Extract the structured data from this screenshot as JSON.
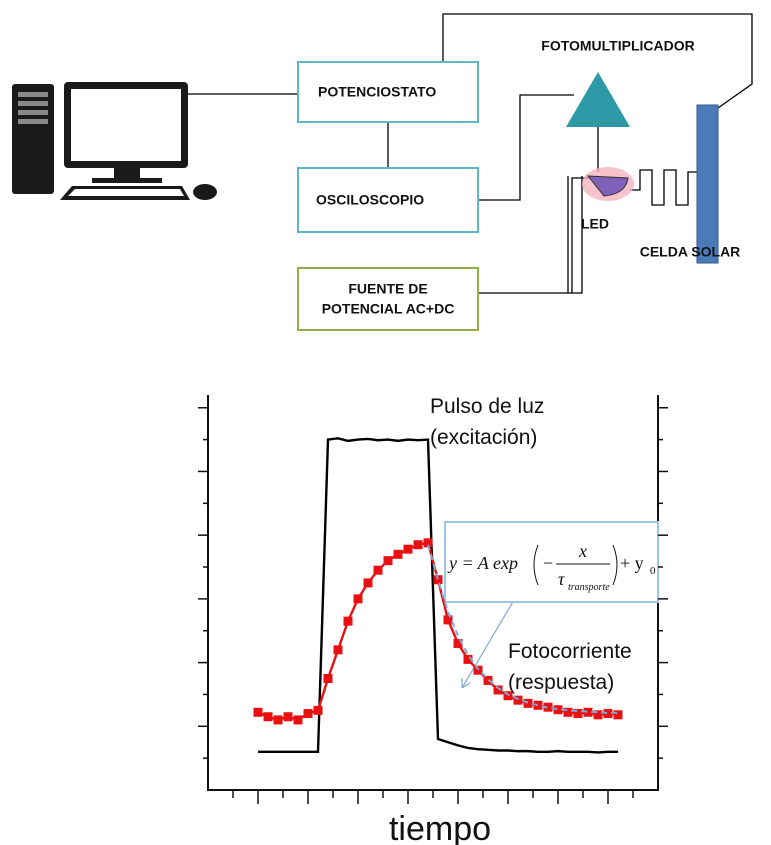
{
  "diagram": {
    "boxes": {
      "potenciostato": "POTENCIOSTATO",
      "osciloscopio": "OSCILOSCOPIO",
      "fuente_line1": "FUENTE DE",
      "fuente_line2": "POTENCIAL AC+DC"
    },
    "labels": {
      "fotomultiplicador": "FOTOMULTIPLICADOR",
      "led": "LED",
      "celda": "CELDA SOLAR"
    }
  },
  "chart_data": {
    "type": "line",
    "xlabel": "tiempo",
    "annotations": {
      "pulse_line1": "Pulso de luz",
      "pulse_line2": "(excitación)",
      "response_line1": "Fotocorriente",
      "response_line2": "(respuesta)"
    },
    "equation": {
      "lhs": "y = A exp",
      "minus": "−",
      "numerator": "x",
      "tau": "τ",
      "tau_sub": "transporte",
      "plus": "+ y",
      "y_sub": "0"
    },
    "xlim": [
      0,
      9
    ],
    "ylim": [
      0,
      6.2
    ],
    "xticks": [
      0.5,
      1,
      1.5,
      2,
      2.5,
      3,
      3.5,
      4,
      4.5,
      5,
      5.5,
      6,
      6.5,
      7,
      7.5,
      8,
      8.5
    ],
    "yticks": [
      0.5,
      1,
      1.5,
      2,
      2.5,
      3,
      3.5,
      4,
      4.5,
      5,
      5.5,
      6
    ],
    "x": [
      1.0,
      1.2,
      1.4,
      1.6,
      1.8,
      2.0,
      2.2,
      2.4,
      2.6,
      2.8,
      3.0,
      3.2,
      3.4,
      3.6,
      3.8,
      4.0,
      4.2,
      4.4,
      4.6,
      4.8,
      5.0,
      5.2,
      5.4,
      5.6,
      5.8,
      6.0,
      6.2,
      6.4,
      6.6,
      6.8,
      7.0,
      7.2,
      7.4,
      7.6,
      7.8,
      8.0,
      8.2
    ],
    "series": [
      {
        "color": "#000000",
        "markers": false,
        "dashed": false,
        "values": [
          0.6,
          0.6,
          0.6,
          0.6,
          0.6,
          0.6,
          0.6,
          5.5,
          5.52,
          5.48,
          5.5,
          5.51,
          5.49,
          5.5,
          5.48,
          5.5,
          5.49,
          5.5,
          0.8,
          0.75,
          0.7,
          0.66,
          0.64,
          0.63,
          0.62,
          0.62,
          0.61,
          0.61,
          0.6,
          0.6,
          0.61,
          0.6,
          0.6,
          0.6,
          0.59,
          0.6,
          0.6
        ]
      },
      {
        "color": "#e81010",
        "markers": true,
        "dashed": false,
        "values": [
          1.22,
          1.15,
          1.1,
          1.15,
          1.1,
          1.2,
          1.25,
          1.75,
          2.2,
          2.65,
          3.0,
          3.25,
          3.45,
          3.6,
          3.7,
          3.78,
          3.85,
          3.88,
          3.3,
          2.67,
          2.3,
          2.05,
          1.88,
          1.72,
          1.57,
          1.48,
          1.41,
          1.36,
          1.33,
          1.3,
          1.26,
          1.22,
          1.2,
          1.22,
          1.18,
          1.2,
          1.18
        ]
      },
      {
        "color": "#7fa8d8",
        "markers": false,
        "dashed": true,
        "values": [
          null,
          null,
          null,
          null,
          null,
          null,
          null,
          null,
          null,
          null,
          null,
          null,
          null,
          null,
          null,
          null,
          null,
          3.85,
          3.3,
          2.8,
          2.42,
          2.12,
          1.9,
          1.74,
          1.6,
          1.5,
          1.43,
          1.37,
          1.33,
          1.29,
          1.27,
          1.25,
          1.24,
          1.23,
          1.22,
          1.21,
          1.21
        ]
      }
    ]
  }
}
